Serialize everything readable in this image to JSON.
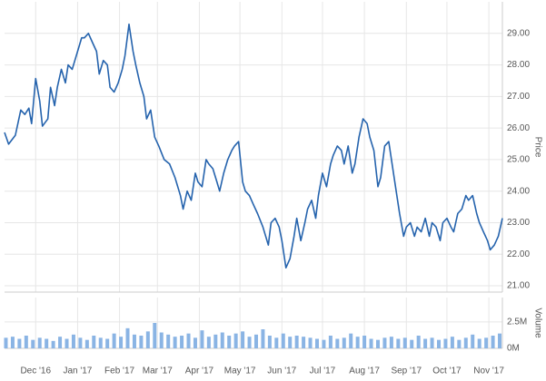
{
  "chart_data": [
    {
      "type": "line",
      "y_label": "Price",
      "color": "#2563ad",
      "xlim": [
        -23,
        345
      ],
      "ylim": [
        20.8,
        30
      ],
      "yticks": [
        {
          "value": 21,
          "label": "21.00"
        },
        {
          "value": 22,
          "label": "22.00"
        },
        {
          "value": 23,
          "label": "23.00"
        },
        {
          "value": 24,
          "label": "24.00"
        },
        {
          "value": 25,
          "label": "25.00"
        },
        {
          "value": 26,
          "label": "26.00"
        },
        {
          "value": 27,
          "label": "27.00"
        },
        {
          "value": 28,
          "label": "28.00"
        },
        {
          "value": 29,
          "label": "29.00"
        }
      ],
      "grid": true,
      "x": [
        -23,
        -20,
        -15,
        -11,
        -8,
        -5,
        -3,
        0,
        3,
        5,
        9,
        11,
        14,
        16,
        19,
        22,
        24,
        27,
        31,
        34,
        36,
        39,
        42,
        45,
        47,
        50,
        53,
        55,
        58,
        61,
        64,
        66,
        69,
        72,
        74,
        77,
        80,
        82,
        85,
        88,
        91,
        95,
        99,
        103,
        107,
        109,
        112,
        115,
        118,
        120,
        123,
        126,
        128,
        131,
        134,
        136,
        139,
        142,
        145,
        147,
        150,
        153,
        155,
        158,
        161,
        164,
        168,
        172,
        174,
        177,
        180,
        182,
        185,
        188,
        191,
        193,
        196,
        199,
        201,
        204,
        207,
        209,
        212,
        215,
        218,
        220,
        223,
        226,
        228,
        231,
        234,
        236,
        239,
        242,
        245,
        247,
        250,
        253,
        255,
        258,
        261,
        264,
        266,
        269,
        272,
        274,
        277,
        280,
        282,
        285,
        288,
        291,
        293,
        296,
        299,
        301,
        304,
        307,
        309,
        312,
        315,
        318,
        320,
        323,
        326,
        328,
        331,
        334,
        336,
        339,
        342,
        345
      ],
      "values": [
        25.86,
        25.49,
        25.77,
        26.57,
        26.43,
        26.63,
        26.14,
        27.57,
        26.86,
        26.06,
        26.29,
        27.29,
        26.71,
        27.29,
        27.86,
        27.43,
        28.0,
        27.86,
        28.43,
        28.86,
        28.86,
        29.0,
        28.71,
        28.43,
        27.71,
        28.14,
        28.0,
        27.29,
        27.14,
        27.43,
        27.86,
        28.29,
        29.29,
        28.43,
        28.0,
        27.43,
        27.0,
        26.29,
        26.57,
        25.71,
        25.43,
        25.0,
        24.86,
        24.43,
        23.86,
        23.43,
        24.0,
        23.71,
        24.57,
        24.29,
        24.14,
        25.0,
        24.86,
        24.71,
        24.29,
        24.0,
        24.57,
        25.0,
        25.29,
        25.43,
        25.57,
        24.29,
        24.0,
        23.86,
        23.57,
        23.29,
        22.86,
        22.29,
        23.0,
        23.14,
        22.86,
        22.43,
        21.57,
        21.86,
        22.57,
        23.14,
        22.43,
        23.0,
        23.43,
        23.71,
        23.14,
        23.86,
        24.57,
        24.14,
        24.86,
        25.14,
        25.43,
        25.29,
        24.86,
        25.43,
        24.57,
        24.86,
        25.71,
        26.29,
        26.14,
        25.71,
        25.29,
        24.14,
        24.43,
        25.43,
        25.57,
        24.71,
        24.14,
        23.29,
        22.57,
        22.86,
        23.0,
        22.57,
        22.86,
        22.71,
        23.14,
        22.57,
        23.0,
        22.86,
        22.43,
        23.0,
        23.14,
        22.86,
        22.71,
        23.29,
        23.43,
        23.86,
        23.71,
        23.86,
        23.29,
        23.0,
        22.71,
        22.43,
        22.14,
        22.29,
        22.57,
        23.14
      ]
    },
    {
      "type": "bar",
      "y_label": "Volume",
      "color": "#8ab4e4",
      "xlim": [
        -23,
        345
      ],
      "ylim": [
        0,
        4.8
      ],
      "yticks": [
        {
          "value": 0,
          "label": "0M"
        },
        {
          "value": 2.5,
          "label": "2.5M"
        }
      ],
      "xticks": [
        {
          "value": 0,
          "label": "Dec '16"
        },
        {
          "value": 31,
          "label": "Jan '17"
        },
        {
          "value": 62,
          "label": "Feb '17"
        },
        {
          "value": 90,
          "label": "Mar '17"
        },
        {
          "value": 121,
          "label": "Apr '17"
        },
        {
          "value": 151,
          "label": "May '17"
        },
        {
          "value": 182,
          "label": "Jun '17"
        },
        {
          "value": 212,
          "label": "Jul '17"
        },
        {
          "value": 243,
          "label": "Aug '17"
        },
        {
          "value": 274,
          "label": "Sep '17"
        },
        {
          "value": 304,
          "label": "Oct '17"
        },
        {
          "value": 335,
          "label": "Nov '17"
        }
      ],
      "grid": true,
      "x": [
        -22,
        -17,
        -12,
        -7,
        -2,
        3,
        8,
        13,
        18,
        23,
        28,
        33,
        38,
        43,
        48,
        53,
        58,
        63,
        68,
        73,
        78,
        83,
        88,
        93,
        98,
        103,
        108,
        113,
        118,
        123,
        128,
        133,
        138,
        143,
        148,
        153,
        158,
        163,
        168,
        173,
        178,
        183,
        188,
        193,
        198,
        203,
        208,
        213,
        218,
        223,
        228,
        233,
        238,
        243,
        248,
        253,
        258,
        263,
        268,
        273,
        278,
        283,
        288,
        293,
        298,
        303,
        308,
        313,
        318,
        323,
        328,
        333,
        338,
        343
      ],
      "values": [
        1.0,
        1.1,
        0.9,
        1.2,
        0.8,
        1.0,
        0.9,
        0.7,
        1.1,
        0.9,
        1.3,
        1.0,
        0.8,
        1.2,
        1.0,
        0.9,
        1.4,
        1.1,
        1.9,
        1.3,
        1.2,
        1.6,
        2.4,
        1.5,
        1.3,
        1.1,
        1.2,
        1.4,
        1.0,
        1.7,
        1.1,
        1.3,
        1.5,
        1.2,
        1.4,
        1.6,
        1.1,
        1.3,
        1.8,
        1.2,
        1.0,
        1.4,
        1.1,
        1.2,
        1.1,
        1.0,
        0.9,
        0.8,
        1.2,
        0.9,
        1.0,
        1.4,
        1.1,
        1.2,
        0.9,
        0.8,
        1.0,
        1.1,
        0.9,
        1.0,
        0.8,
        1.2,
        0.9,
        1.0,
        0.8,
        0.9,
        1.1,
        0.8,
        1.0,
        1.3,
        0.9,
        1.0,
        1.2,
        1.4
      ]
    }
  ]
}
